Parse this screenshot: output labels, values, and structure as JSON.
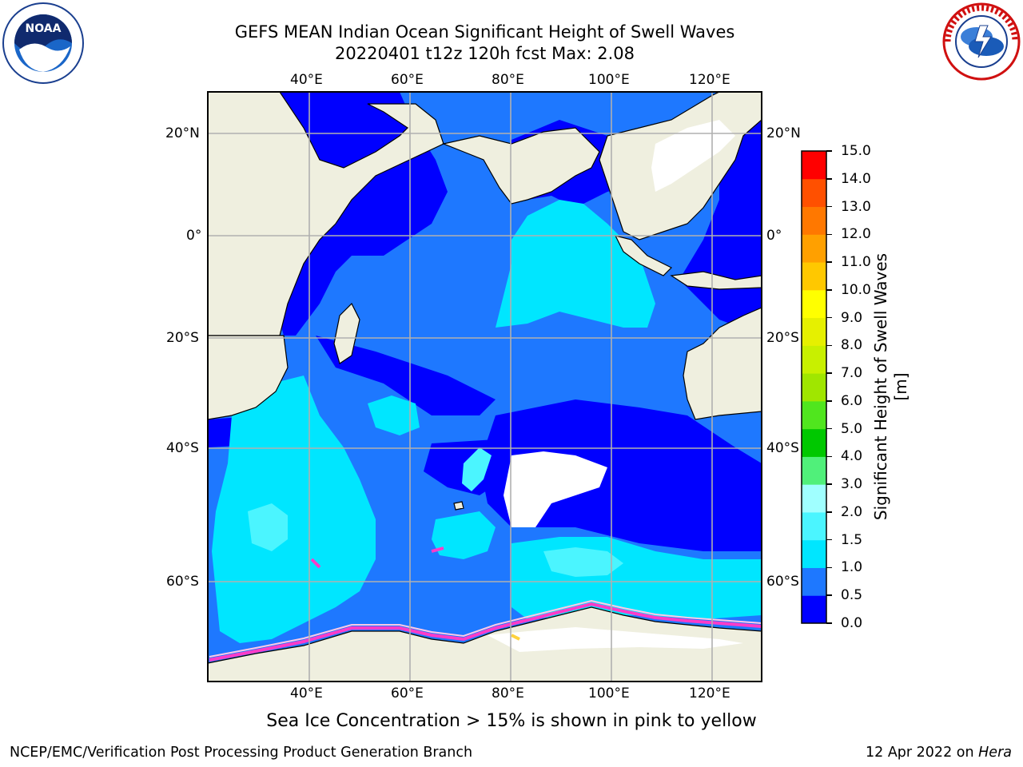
{
  "header": {
    "title_line1": "GEFS MEAN Indian Ocean Significant Height of Swell Waves",
    "title_line2": "20220401 t12z 120h fcst   Max: 2.08"
  },
  "logos": {
    "noaa": {
      "text": "NOAA",
      "icon": "noaa-logo-icon"
    },
    "nws": {
      "icon": "national-weather-service-logo-icon"
    }
  },
  "map": {
    "lon_ticks": [
      "40°E",
      "60°E",
      "80°E",
      "100°E",
      "120°E"
    ],
    "lat_ticks": [
      "20°N",
      "0°",
      "20°S",
      "40°S",
      "60°S"
    ]
  },
  "colorbar": {
    "label": "Significant Height of Swell Waves [m]",
    "ticks": [
      "0.0",
      "0.5",
      "1.0",
      "1.5",
      "2.0",
      "3.0",
      "4.0",
      "5.0",
      "6.0",
      "7.0",
      "8.0",
      "9.0",
      "10.0",
      "11.0",
      "12.0",
      "13.0",
      "14.0",
      "15.0"
    ],
    "colors": [
      "#0000ff",
      "#1e78ff",
      "#00e6ff",
      "#4bf5ff",
      "#a0ffff",
      "#50f07a",
      "#00c800",
      "#50e61e",
      "#a0e600",
      "#c8f000",
      "#e6f000",
      "#ffff00",
      "#ffc800",
      "#ffa000",
      "#ff7800",
      "#ff5000",
      "#ff0000"
    ]
  },
  "caption": "Sea Ice Concentration > 15% is shown in pink to yellow",
  "footer": {
    "left": "NCEP/EMC/Verification Post Processing Product Generation Branch",
    "right_date": "12 Apr 2022 on ",
    "right_host": "Hera"
  }
}
